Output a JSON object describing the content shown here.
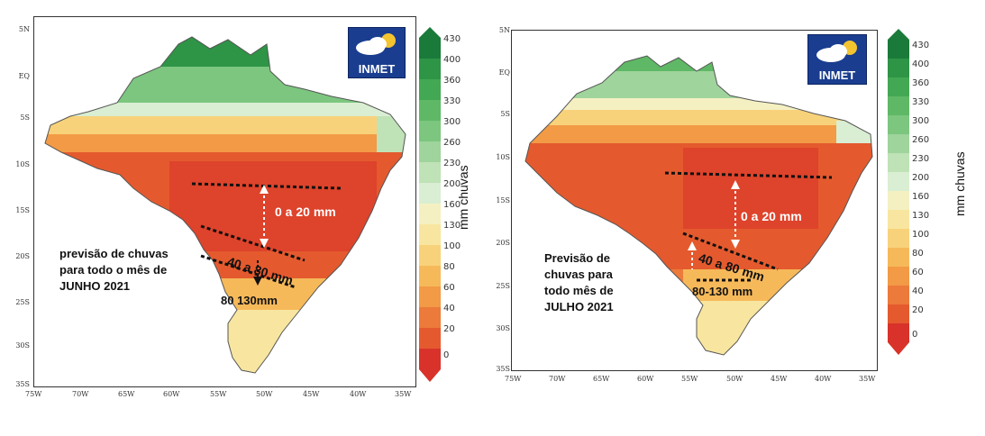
{
  "maps": [
    {
      "id": "left",
      "logo_text": "INMET",
      "unit_label": "mm chuvas",
      "lat_ticks": [
        "5N",
        "EQ",
        "5S",
        "10S",
        "15S",
        "20S",
        "25S",
        "30S",
        "35S"
      ],
      "lon_ticks": [
        "75W",
        "70W",
        "65W",
        "60W",
        "55W",
        "50W",
        "45W",
        "40W",
        "35W"
      ],
      "colorbar_levels": [
        "430",
        "400",
        "360",
        "330",
        "300",
        "260",
        "230",
        "200",
        "160",
        "130",
        "100",
        "80",
        "60",
        "40",
        "20",
        "0"
      ],
      "annotations": {
        "zone_a": "0 a 20 mm",
        "zone_b": "40 a 80 mm",
        "zone_c": "80 130mm"
      },
      "note_lines": [
        "previsão de chuvas",
        "para todo o mês de",
        "JUNHO 2021"
      ]
    },
    {
      "id": "right",
      "logo_text": "INMET",
      "unit_label": "mm chuvas",
      "lat_ticks": [
        "5N",
        "EQ",
        "5S",
        "10S",
        "15S",
        "20S",
        "25S",
        "30S",
        "35S"
      ],
      "lon_ticks": [
        "75W",
        "70W",
        "65W",
        "60W",
        "55W",
        "50W",
        "45W",
        "40W",
        "35W"
      ],
      "colorbar_levels": [
        "430",
        "400",
        "360",
        "330",
        "300",
        "260",
        "230",
        "200",
        "160",
        "130",
        "100",
        "80",
        "60",
        "40",
        "20",
        "0"
      ],
      "annotations": {
        "zone_a": "0 a 20 mm",
        "zone_b": "40 a 80 mm",
        "zone_c": "80-130 mm"
      },
      "note_lines": [
        "Previsão de",
        "chuvas para",
        "todo mês de",
        "JULHO 2021"
      ]
    }
  ],
  "colors": {
    "c430": "#1a7a3a",
    "c400": "#2e9446",
    "c360": "#43a853",
    "c330": "#5fb865",
    "c300": "#7cc67f",
    "c260": "#9fd49c",
    "c230": "#bfe2b7",
    "c200": "#d9eed2",
    "c160": "#f5f0c2",
    "c130": "#f8e6a0",
    "c100": "#f8d27a",
    "c80": "#f6b95a",
    "c60": "#f29a45",
    "c40": "#ec7a3a",
    "c20": "#e45a2e",
    "c0": "#d8322a"
  }
}
